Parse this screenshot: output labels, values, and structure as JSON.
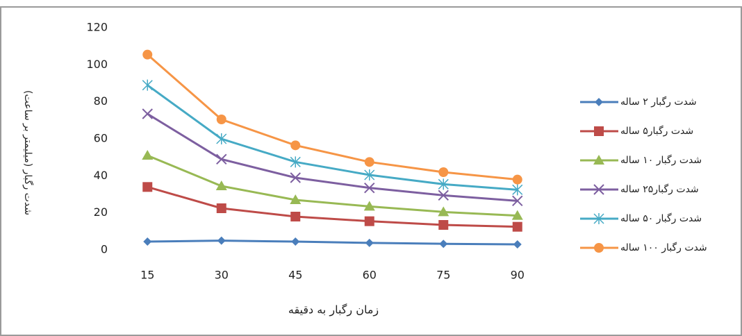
{
  "chart_data": {
    "type": "line",
    "xlabel": "زمان رگبار به دقیقه",
    "ylabel": "شدت رگبار (میلیمتر بر ساعت)",
    "categories": [
      "15",
      "30",
      "45",
      "60",
      "75",
      "90"
    ],
    "ylim": [
      0,
      120
    ],
    "yticks": [
      0,
      20,
      40,
      60,
      80,
      100,
      120
    ],
    "grid": false,
    "legend": "right",
    "series": [
      {
        "name": "شدت رگبار ۲ ساله",
        "color": "#4a7ebb",
        "marker": "diamond",
        "values": [
          4.5,
          5,
          4.5,
          3.8,
          3.3,
          3
        ]
      },
      {
        "name": "شدت رگبار۵ ساله",
        "color": "#be4b48",
        "marker": "square",
        "values": [
          34,
          22.5,
          18,
          15.5,
          13.5,
          12.5
        ]
      },
      {
        "name": "شدت رگبار ۱۰ ساله",
        "color": "#98b954",
        "marker": "triangle",
        "values": [
          51,
          34.5,
          27,
          23.5,
          20.5,
          18.5
        ]
      },
      {
        "name": "شدت رگبار۲۵ ساله",
        "color": "#7d5fa0",
        "marker": "x",
        "values": [
          73.5,
          49,
          39,
          33.5,
          29.5,
          26.5
        ]
      },
      {
        "name": "شدت رگبار ۵۰ ساله",
        "color": "#46aac5",
        "marker": "star",
        "values": [
          89,
          60,
          47.5,
          40.5,
          35.5,
          32.5
        ]
      },
      {
        "name": "شدت رگبار ۱۰۰ ساله",
        "color": "#f69546",
        "marker": "circle",
        "values": [
          105.5,
          70.5,
          56.5,
          47.5,
          42,
          38
        ]
      }
    ]
  }
}
